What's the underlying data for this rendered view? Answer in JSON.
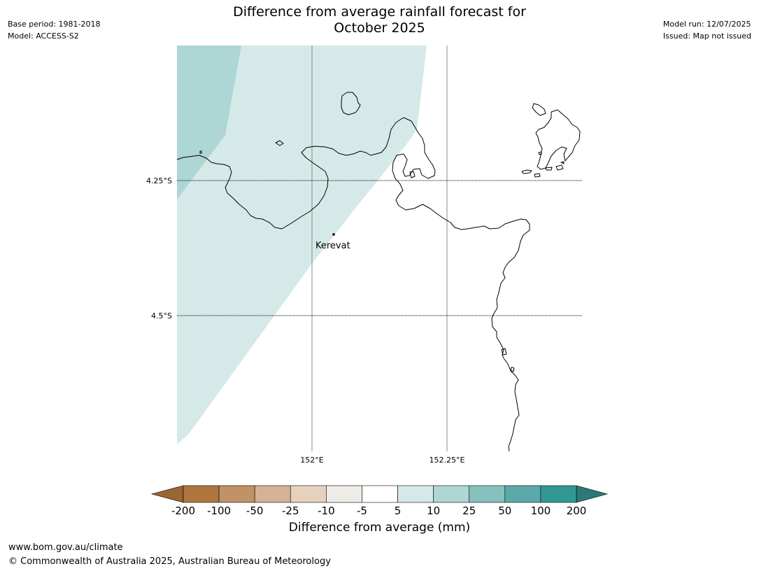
{
  "header": {
    "title_line1": "Difference from average rainfall forecast for",
    "title_line2": "October 2025",
    "base_period": "Base period: 1981-2018",
    "model": "Model: ACCESS-S2",
    "model_run": "Model run: 12/07/2025",
    "issued": "Issued: Map not issued"
  },
  "map": {
    "lat_labels": [
      "4.25°S",
      "4.5°S"
    ],
    "lon_labels": [
      "152°E",
      "152.25°E"
    ],
    "place_label": "Kerevat",
    "colors": {
      "category_5_10": "#d5e9e8",
      "category_10_25": "#add6d5",
      "coastline": "#000000",
      "gridline": "#808080"
    }
  },
  "colorbar": {
    "title": "Difference from average (mm)",
    "tick_labels": [
      "-200",
      "-100",
      "-50",
      "-25",
      "-10",
      "-5",
      "5",
      "10",
      "25",
      "50",
      "100",
      "200"
    ],
    "colors": [
      "#9b6630",
      "#ae763e",
      "#c19266",
      "#d4b293",
      "#e5d1be",
      "#efebe7",
      "#ffffff",
      "#d5e9e8",
      "#add6d5",
      "#85c1bd",
      "#5ba9a8",
      "#319896",
      "#2a7a77"
    ]
  },
  "footer": {
    "url": "www.bom.gov.au/climate",
    "copyright": "© Commonwealth of Australia 2025, Australian Bureau of Meteorology"
  }
}
